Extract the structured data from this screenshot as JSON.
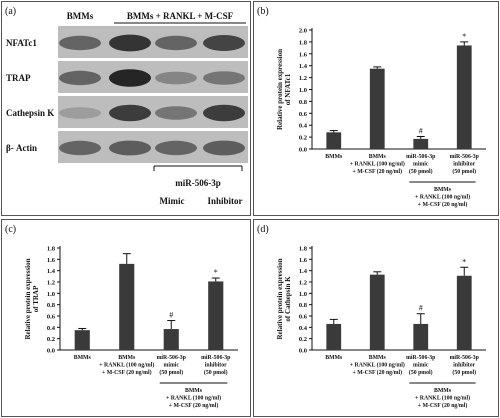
{
  "panels": {
    "a": {
      "label": "(a)",
      "header_bmms": "BMMs",
      "header_treat": "BMMs + RANKL + M-CSF",
      "rows": [
        "NFATc1",
        "TRAP",
        "Cathepsin K",
        "β- Actin"
      ],
      "mir_label": "miR-506-3p",
      "mimic": "Mimic",
      "inhibitor": "Inhibitor"
    },
    "b": {
      "label": "(b)"
    },
    "c": {
      "label": "(c)"
    },
    "d": {
      "label": "(d)"
    }
  },
  "chart_data": [
    {
      "type": "bar",
      "panel": "b",
      "ylabel": "Relative protein expression of NFATc1",
      "ylim": [
        0,
        2.0
      ],
      "yticks": [
        "0.0",
        "0.2",
        "0.4",
        "0.6",
        "0.8",
        "1.0",
        "1.2",
        "1.4",
        "1.6",
        "1.8",
        "2.0"
      ],
      "categories": [
        [
          "BMMs"
        ],
        [
          "BMMs",
          "+ RANKL (100 ng/ml)",
          "+ M-CSF (20 ng/ml)"
        ],
        [
          "miR-506-3p",
          "mimic",
          "(50 pmol)"
        ],
        [
          "miR-506-3p",
          "inhibitor",
          "(50 pmol)"
        ]
      ],
      "values": [
        0.28,
        1.35,
        0.17,
        1.74
      ],
      "errors": [
        0.03,
        0.03,
        0.04,
        0.06
      ],
      "marks": [
        "",
        "",
        "#",
        "*"
      ],
      "bracket_label": [
        "BMMs",
        "+ RANKL (100 ng/ml)",
        "+ M-CSF (20 ng/ml)"
      ]
    },
    {
      "type": "bar",
      "panel": "c",
      "ylabel": "Relative protein expression of TRAP",
      "ylim": [
        0,
        1.8
      ],
      "yticks": [
        "0.0",
        "0.2",
        "0.4",
        "0.6",
        "0.8",
        "1.0",
        "1.2",
        "1.4",
        "1.6",
        "1.8"
      ],
      "categories": [
        [
          "BMMs"
        ],
        [
          "BMMs",
          "+ RANKL (100 ng/ml)",
          "+ M-CSF (20 ng/ml)"
        ],
        [
          "miR-506-3p",
          "mimic",
          "(50 pmol)"
        ],
        [
          "miR-506-3p",
          "inhibitor",
          "(50 pmol)"
        ]
      ],
      "values": [
        0.35,
        1.52,
        0.37,
        1.21
      ],
      "errors": [
        0.03,
        0.18,
        0.15,
        0.06
      ],
      "marks": [
        "",
        "",
        "#",
        "*"
      ],
      "bracket_label": [
        "BMMs",
        "+ RANKL (100 ng/ml)",
        "+ M-CSF (20 ng/ml)"
      ]
    },
    {
      "type": "bar",
      "panel": "d",
      "ylabel": "Relative protein expression of Cathepsin K",
      "ylim": [
        0,
        1.8
      ],
      "yticks": [
        "0.0",
        "0.2",
        "0.4",
        "0.6",
        "0.8",
        "1.0",
        "1.2",
        "1.4",
        "1.6",
        "1.8"
      ],
      "categories": [
        [
          "BMMs"
        ],
        [
          "BMMs",
          "+ RANKL (100 ng/ml)",
          "+ M-CSF (20 ng/ml)"
        ],
        [
          "miR-506-3p",
          "mimic",
          "(50 pmol)"
        ],
        [
          "miR-506-3p",
          "inhibitor",
          "(50 pmol)"
        ]
      ],
      "values": [
        0.46,
        1.33,
        0.46,
        1.31
      ],
      "errors": [
        0.08,
        0.05,
        0.18,
        0.15
      ],
      "marks": [
        "",
        "",
        "#",
        "*"
      ],
      "bracket_label": [
        "BMMs",
        "+ RANKL (100 ng/ml)",
        "+ M-CSF (20 ng/ml)"
      ]
    }
  ],
  "colors": {
    "bar": "#3a3a3a",
    "axis": "#111111",
    "blot_bg": "#bdbdbd",
    "band": "#1c1c1c"
  }
}
